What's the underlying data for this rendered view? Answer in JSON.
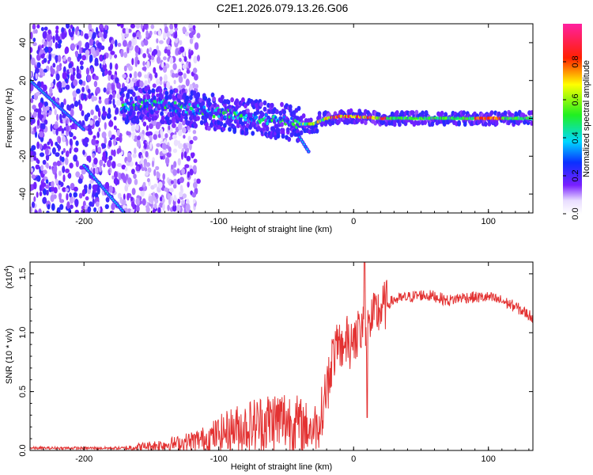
{
  "chart_data": [
    {
      "type": "heatmap",
      "title": "C2E1.2026.079.13.26.G06",
      "xlabel": "Height of straight line (km)",
      "ylabel": "Frequency (Hz)",
      "xlim": [
        -240,
        133
      ],
      "ylim": [
        -50,
        50
      ],
      "xticks": [
        -200,
        -100,
        0,
        100
      ],
      "yticks": [
        -40,
        -20,
        0,
        20,
        40
      ],
      "colorbar": {
        "label": "Normalized spectral amplitude",
        "range": [
          0,
          1
        ],
        "ticks": [
          "0.0",
          "0.2",
          "0.4",
          "0.6",
          "0.8"
        ],
        "colormap": "rainbow (white-purple-blue-cyan-green-yellow-red-magenta)"
      },
      "features": [
        {
          "name": "main-track",
          "x": [
            -170,
            -140,
            -100,
            -70,
            -40,
            -30,
            -20,
            -10,
            0,
            20,
            60,
            100,
            133
          ],
          "freq_hz": [
            7,
            7,
            3,
            0,
            -3,
            -3,
            0,
            1,
            1,
            0,
            0,
            0,
            0
          ]
        },
        {
          "name": "diagonal-track-1",
          "x": [
            -240,
            -200
          ],
          "freq_hz": [
            20,
            -6
          ]
        },
        {
          "name": "diagonal-track-2",
          "x": [
            -200,
            -170
          ],
          "freq_hz": [
            -25,
            -50
          ]
        },
        {
          "name": "branch",
          "x": [
            -40,
            -33
          ],
          "freq_hz": [
            -10,
            -18
          ]
        }
      ]
    },
    {
      "type": "line",
      "xlabel": "Height of straight line (km)",
      "ylabel": "SNR (10 * v/v)",
      "yscale_label": "(x10",
      "yscale_exp": "4",
      "xlim": [
        -240,
        133
      ],
      "ylim": [
        0,
        1.6
      ],
      "xticks": [
        -200,
        -100,
        0,
        100
      ],
      "yticks": [
        "0.0",
        "0.5",
        "1.0",
        "1.5"
      ],
      "color": "#e33232",
      "series": [
        {
          "name": "SNR",
          "x": [
            -240,
            -200,
            -170,
            -150,
            -130,
            -110,
            -100,
            -90,
            -80,
            -70,
            -60,
            -50,
            -40,
            -30,
            -25,
            -20,
            -17,
            -15,
            -10,
            -5,
            0,
            5,
            10,
            20,
            30,
            40,
            50,
            60,
            70,
            80,
            90,
            100,
            110,
            120,
            133
          ],
          "values": [
            0.02,
            0.02,
            0.02,
            0.04,
            0.06,
            0.1,
            0.14,
            0.18,
            0.2,
            0.23,
            0.25,
            0.26,
            0.22,
            0.18,
            0.25,
            0.55,
            0.72,
            0.82,
            0.88,
            0.93,
            0.98,
            1.0,
            1.05,
            1.2,
            1.28,
            1.3,
            1.32,
            1.31,
            1.27,
            1.3,
            1.3,
            1.3,
            1.27,
            1.22,
            1.13
          ]
        }
      ]
    }
  ]
}
